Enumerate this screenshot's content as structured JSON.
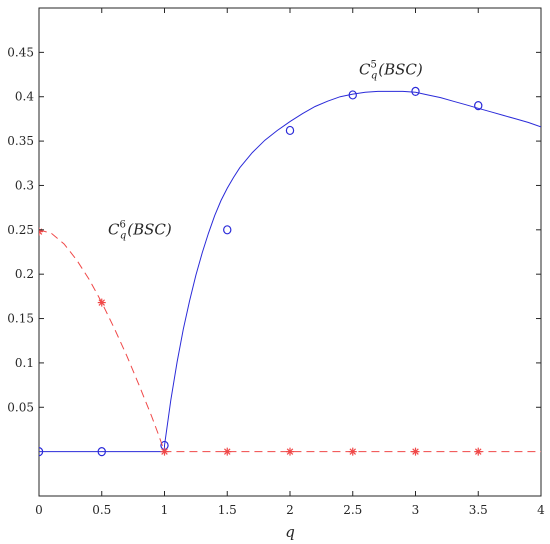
{
  "chart_data": {
    "type": "line",
    "xlabel": "q",
    "ylabel": "",
    "xlim": [
      0,
      4
    ],
    "ylim": [
      -0.05,
      0.5
    ],
    "x_ticks": [
      0,
      0.5,
      1,
      1.5,
      2,
      2.5,
      3,
      3.5,
      4
    ],
    "x_tick_labels": [
      "0",
      "0.5",
      "1",
      "1.5",
      "2",
      "2.5",
      "3",
      "3.5",
      "4"
    ],
    "y_ticks": [
      0.05,
      0.1,
      0.15,
      0.2,
      0.25,
      0.3,
      0.35,
      0.4,
      0.45
    ],
    "y_tick_labels": [
      "0.05",
      "0.1",
      "0.15",
      "0.2",
      "0.25",
      "0.3",
      "0.35",
      "0.4",
      "0.45"
    ],
    "grid": false,
    "colors": {
      "c5": "#2b2bd9",
      "c6": "#f04848",
      "axes": "#262626"
    },
    "annotations": [
      {
        "base": "C",
        "sup": "5",
        "sub": "q",
        "rest": "(BSC)",
        "x": 2.55,
        "y": 0.425
      },
      {
        "base": "C",
        "sup": "6",
        "sub": "q",
        "rest": "(BSC)",
        "x": 0.55,
        "y": 0.245
      }
    ],
    "series": [
      {
        "label_ref": 0,
        "style": "solid",
        "marker": "circle",
        "curve_x": [
          0,
          0.5,
          1.0,
          1.0,
          1.05,
          1.1,
          1.15,
          1.2,
          1.25,
          1.3,
          1.35,
          1.4,
          1.45,
          1.5,
          1.55,
          1.6,
          1.7,
          1.8,
          1.9,
          2.0,
          2.1,
          2.2,
          2.3,
          2.4,
          2.5,
          2.6,
          2.7,
          2.8,
          2.9,
          3.0,
          3.1,
          3.2,
          3.3,
          3.4,
          3.5,
          3.6,
          3.7,
          3.8,
          3.9,
          4.0
        ],
        "curve_y": [
          0,
          0,
          0,
          0.007,
          0.058,
          0.101,
          0.138,
          0.17,
          0.199,
          0.224,
          0.246,
          0.266,
          0.283,
          0.297,
          0.309,
          0.32,
          0.337,
          0.351,
          0.362,
          0.372,
          0.381,
          0.389,
          0.395,
          0.4,
          0.403,
          0.405,
          0.406,
          0.406,
          0.406,
          0.405,
          0.402,
          0.399,
          0.395,
          0.391,
          0.387,
          0.383,
          0.379,
          0.375,
          0.371,
          0.366
        ],
        "marker_x": [
          0,
          0.5,
          1.0,
          1.5,
          2.0,
          2.5,
          3.0,
          3.5
        ],
        "marker_y": [
          0,
          0,
          0.007,
          0.25,
          0.362,
          0.402,
          0.406,
          0.39
        ]
      },
      {
        "label_ref": 1,
        "style": "dashed",
        "marker": "star",
        "curve_x": [
          0,
          0.1,
          0.2,
          0.3,
          0.4,
          0.5,
          0.6,
          0.7,
          0.8,
          0.9,
          0.95,
          1.0,
          1.5,
          2.0,
          2.5,
          3.0,
          3.5,
          4.0
        ],
        "curve_y": [
          0.25,
          0.246,
          0.234,
          0.216,
          0.194,
          0.168,
          0.139,
          0.108,
          0.074,
          0.039,
          0.02,
          0,
          0,
          0,
          0,
          0,
          0,
          0
        ],
        "marker_x": [
          0,
          0.5,
          1.0,
          1.5,
          2.0,
          2.5,
          3.0,
          3.5
        ],
        "marker_y": [
          0.248,
          0.168,
          0,
          0,
          0,
          0,
          0,
          0
        ]
      }
    ]
  }
}
